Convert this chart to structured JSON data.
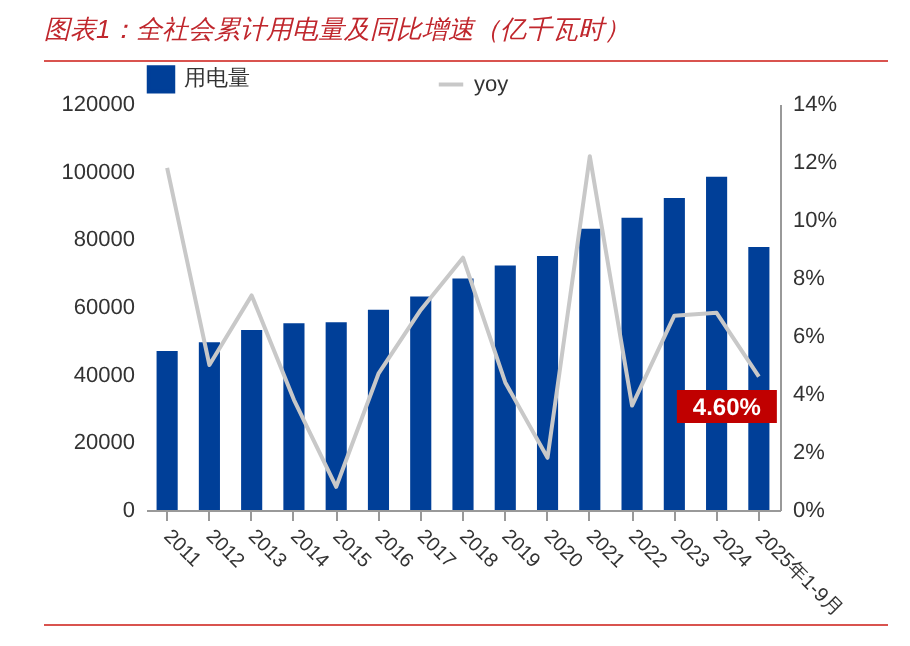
{
  "chart_data": {
    "type": "bar",
    "title": "图表1：全社会累计用电量及同比增速（亿千瓦时）",
    "categories": [
      "2011",
      "2012",
      "2013",
      "2014",
      "2015",
      "2016",
      "2017",
      "2018",
      "2019",
      "2020",
      "2021",
      "2022",
      "2023",
      "2024",
      "2025年1-9月"
    ],
    "series": [
      {
        "name": "用电量",
        "color": "#003f98",
        "values": [
          47000,
          49600,
          53200,
          55200,
          55500,
          59200,
          63100,
          68400,
          72300,
          75100,
          83100,
          86400,
          92200,
          98500,
          77700
        ]
      },
      {
        "name": "yoy",
        "type": "line",
        "axis": "y2",
        "color": "#c8c8c8",
        "values": [
          11.8,
          5.0,
          7.4,
          3.8,
          0.8,
          4.7,
          6.9,
          8.7,
          4.4,
          1.8,
          12.2,
          3.6,
          6.7,
          6.8,
          4.6
        ]
      }
    ],
    "ylim": [
      0,
      120000
    ],
    "yticks": [
      0,
      20000,
      40000,
      60000,
      80000,
      100000,
      120000
    ],
    "y2lim": [
      0,
      14
    ],
    "y2ticks": [
      {
        "value": 0,
        "label": "0%"
      },
      {
        "value": 2,
        "label": "2%"
      },
      {
        "value": 4,
        "label": "4%"
      },
      {
        "value": 6,
        "label": "6%"
      },
      {
        "value": 8,
        "label": "8%"
      },
      {
        "value": 10,
        "label": "10%"
      },
      {
        "value": 12,
        "label": "12%"
      },
      {
        "value": 14,
        "label": "14%"
      }
    ],
    "annotations": [
      "4.60%"
    ],
    "legend": "top",
    "grid": false
  }
}
